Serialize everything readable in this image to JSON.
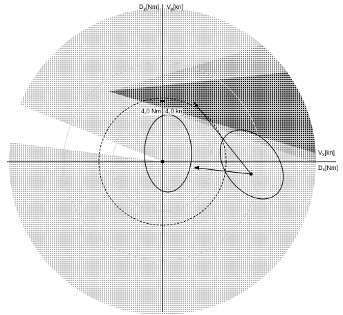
{
  "axis_labels": {
    "dy_main": "D",
    "dy_sub": "y",
    "dy_unit": "[Nm]",
    "vy_main": "V",
    "vy_sub": "y",
    "vy_unit": "[kn]",
    "vx_main": "V",
    "vx_sub": "x",
    "vx_unit": "[kn]",
    "dx_main": "D",
    "dx_sub": "x",
    "dx_unit": "[Nm]"
  },
  "ring_labels": {
    "distance": "4,0 Nm",
    "speed": "4,0 kn"
  },
  "colors": {
    "light_hatch": "#c8c8c8",
    "dark_hatch": "#3a3a3a",
    "ring": "#d8d8d8",
    "axis": "#000000",
    "ellipse": "#000000"
  }
}
